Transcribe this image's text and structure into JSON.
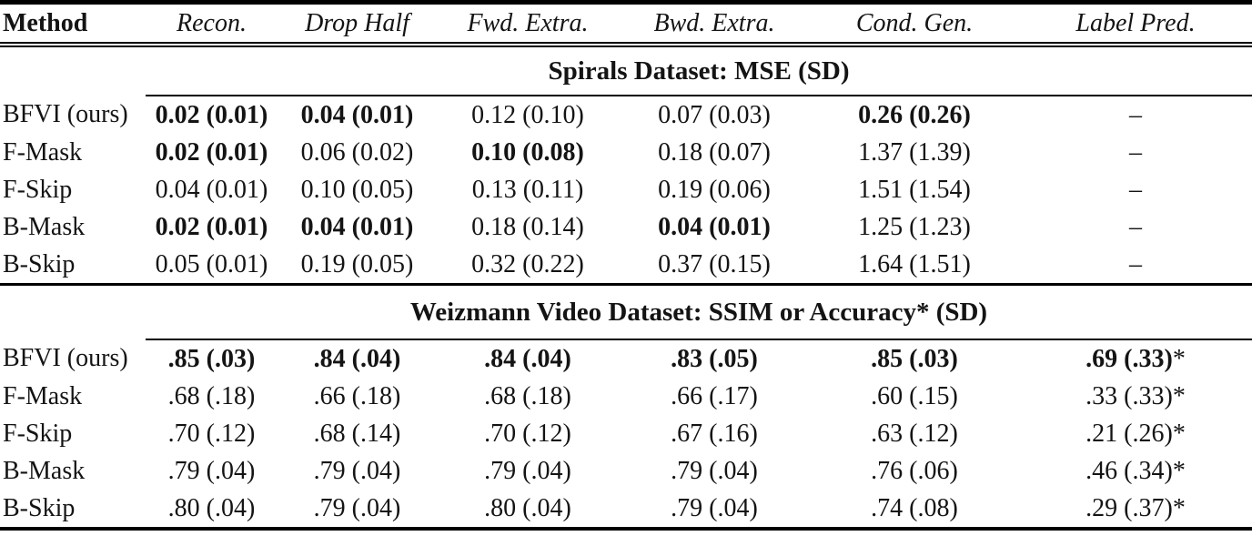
{
  "colors": {
    "background": "#ffffff",
    "text": "#141414",
    "rule": "#000000"
  },
  "table": {
    "columns": [
      "Method",
      "Recon.",
      "Drop Half",
      "Fwd. Extra.",
      "Bwd. Extra.",
      "Cond. Gen.",
      "Label Pred."
    ],
    "sections": [
      {
        "title": "Spirals Dataset: MSE (SD)",
        "rows": [
          {
            "method": "BFVI (ours)",
            "cells": [
              {
                "v": "0.02 (0.01)",
                "bold": true
              },
              {
                "v": "0.04 (0.01)",
                "bold": true
              },
              {
                "v": "0.12 (0.10)",
                "bold": false
              },
              {
                "v": "0.07 (0.03)",
                "bold": false
              },
              {
                "v": "0.26 (0.26)",
                "bold": true
              },
              {
                "v": "–",
                "bold": false
              }
            ]
          },
          {
            "method": "F-Mask",
            "cells": [
              {
                "v": "0.02 (0.01)",
                "bold": true
              },
              {
                "v": "0.06 (0.02)",
                "bold": false
              },
              {
                "v": "0.10 (0.08)",
                "bold": true
              },
              {
                "v": "0.18 (0.07)",
                "bold": false
              },
              {
                "v": "1.37 (1.39)",
                "bold": false
              },
              {
                "v": "–",
                "bold": false
              }
            ]
          },
          {
            "method": "F-Skip",
            "cells": [
              {
                "v": "0.04 (0.01)",
                "bold": false
              },
              {
                "v": "0.10 (0.05)",
                "bold": false
              },
              {
                "v": "0.13 (0.11)",
                "bold": false
              },
              {
                "v": "0.19 (0.06)",
                "bold": false
              },
              {
                "v": "1.51 (1.54)",
                "bold": false
              },
              {
                "v": "–",
                "bold": false
              }
            ]
          },
          {
            "method": "B-Mask",
            "cells": [
              {
                "v": "0.02 (0.01)",
                "bold": true
              },
              {
                "v": "0.04 (0.01)",
                "bold": true
              },
              {
                "v": "0.18 (0.14)",
                "bold": false
              },
              {
                "v": "0.04 (0.01)",
                "bold": true
              },
              {
                "v": "1.25 (1.23)",
                "bold": false
              },
              {
                "v": "–",
                "bold": false
              }
            ]
          },
          {
            "method": "B-Skip",
            "cells": [
              {
                "v": "0.05 (0.01)",
                "bold": false
              },
              {
                "v": "0.19 (0.05)",
                "bold": false
              },
              {
                "v": "0.32 (0.22)",
                "bold": false
              },
              {
                "v": "0.37 (0.15)",
                "bold": false
              },
              {
                "v": "1.64 (1.51)",
                "bold": false
              },
              {
                "v": "–",
                "bold": false
              }
            ]
          }
        ]
      },
      {
        "title": "Weizmann Video Dataset: SSIM or Accuracy* (SD)",
        "rows": [
          {
            "method": "BFVI (ours)",
            "cells": [
              {
                "v": ".85 (.03)",
                "bold": true
              },
              {
                "v": ".84 (.04)",
                "bold": true
              },
              {
                "v": ".84 (.04)",
                "bold": true
              },
              {
                "v": ".83 (.05)",
                "bold": true
              },
              {
                "v": ".85 (.03)",
                "bold": true
              },
              {
                "v": ".69 (.33)",
                "suffix": "*",
                "bold": true
              }
            ]
          },
          {
            "method": "F-Mask",
            "cells": [
              {
                "v": ".68 (.18)",
                "bold": false
              },
              {
                "v": ".66 (.18)",
                "bold": false
              },
              {
                "v": ".68 (.18)",
                "bold": false
              },
              {
                "v": ".66 (.17)",
                "bold": false
              },
              {
                "v": ".60 (.15)",
                "bold": false
              },
              {
                "v": ".33 (.33)",
                "suffix": "*",
                "bold": false
              }
            ]
          },
          {
            "method": "F-Skip",
            "cells": [
              {
                "v": ".70 (.12)",
                "bold": false
              },
              {
                "v": ".68 (.14)",
                "bold": false
              },
              {
                "v": ".70 (.12)",
                "bold": false
              },
              {
                "v": ".67 (.16)",
                "bold": false
              },
              {
                "v": ".63 (.12)",
                "bold": false
              },
              {
                "v": ".21 (.26)",
                "suffix": "*",
                "bold": false
              }
            ]
          },
          {
            "method": "B-Mask",
            "cells": [
              {
                "v": ".79 (.04)",
                "bold": false
              },
              {
                "v": ".79 (.04)",
                "bold": false
              },
              {
                "v": ".79 (.04)",
                "bold": false
              },
              {
                "v": ".79 (.04)",
                "bold": false
              },
              {
                "v": ".76 (.06)",
                "bold": false
              },
              {
                "v": ".46 (.34)",
                "suffix": "*",
                "bold": false
              }
            ]
          },
          {
            "method": "B-Skip",
            "cells": [
              {
                "v": ".80 (.04)",
                "bold": false
              },
              {
                "v": ".79 (.04)",
                "bold": false
              },
              {
                "v": ".80 (.04)",
                "bold": false
              },
              {
                "v": ".79 (.04)",
                "bold": false
              },
              {
                "v": ".74 (.08)",
                "bold": false
              },
              {
                "v": ".29 (.37)",
                "suffix": "*",
                "bold": false
              }
            ]
          }
        ]
      }
    ]
  }
}
